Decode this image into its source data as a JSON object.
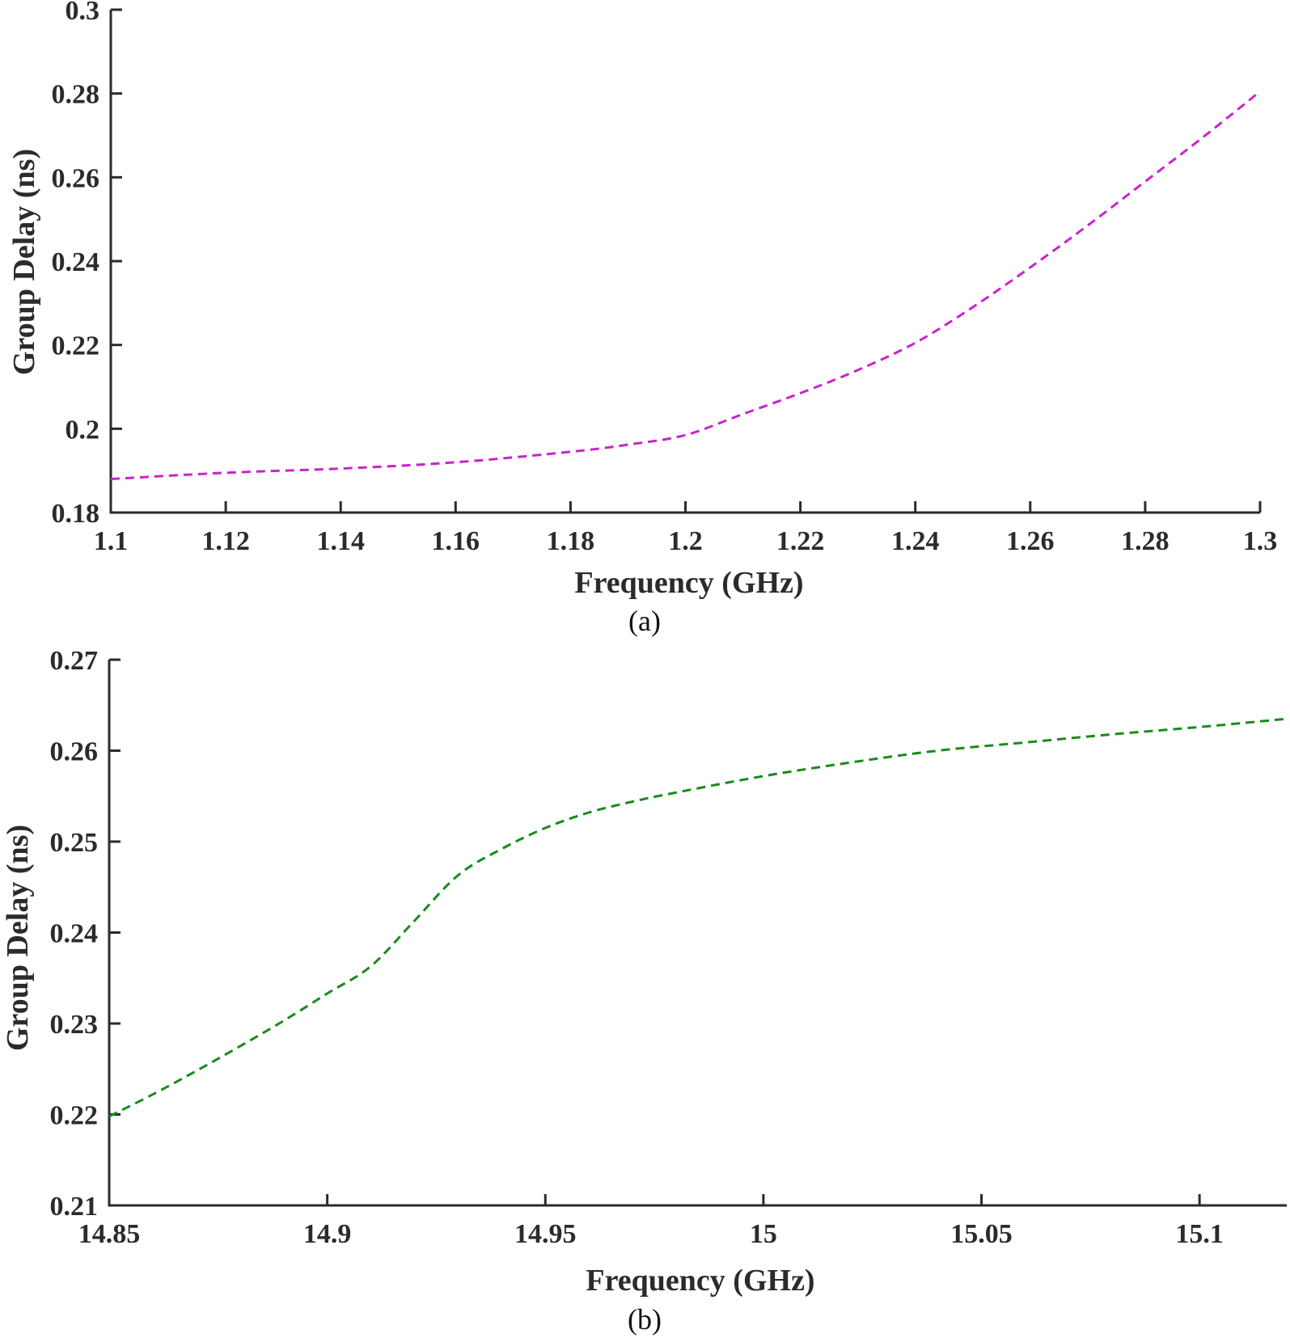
{
  "chart_data": [
    {
      "type": "line",
      "caption": "(a)",
      "xlabel": "Frequency (GHz)",
      "ylabel": "Group Delay (ns)",
      "xlim": [
        1.1,
        1.3
      ],
      "ylim": [
        0.18,
        0.3
      ],
      "xticks": [
        1.1,
        1.12,
        1.14,
        1.16,
        1.18,
        1.2,
        1.22,
        1.24,
        1.26,
        1.28,
        1.3
      ],
      "xtick_labels": [
        "1.1",
        "1.12",
        "1.14",
        "1.16",
        "1.18",
        "1.2",
        "1.22",
        "1.24",
        "1.26",
        "1.28",
        "1.3"
      ],
      "yticks": [
        0.18,
        0.2,
        0.22,
        0.24,
        0.26,
        0.28,
        0.3
      ],
      "ytick_labels": [
        "0.18",
        "0.2",
        "0.22",
        "0.24",
        "0.26",
        "0.28",
        "0.3"
      ],
      "grid": false,
      "series": [
        {
          "color": "#cc22cc",
          "style": "dashed",
          "x": [
            1.1,
            1.12,
            1.14,
            1.16,
            1.18,
            1.19,
            1.2,
            1.21,
            1.22,
            1.23,
            1.24,
            1.25,
            1.26,
            1.27,
            1.28,
            1.29,
            1.3
          ],
          "y": [
            0.188,
            0.1895,
            0.1905,
            0.192,
            0.1945,
            0.1962,
            0.1985,
            0.2035,
            0.2085,
            0.214,
            0.2205,
            0.229,
            0.2385,
            0.2485,
            0.259,
            0.2695,
            0.2805
          ]
        }
      ]
    },
    {
      "type": "line",
      "caption": "(b)",
      "xlabel": "Frequency (GHz)",
      "ylabel": "Group Delay (ns)",
      "xlim": [
        14.85,
        15.12
      ],
      "ylim": [
        0.21,
        0.27
      ],
      "xticks": [
        14.85,
        14.9,
        14.95,
        15.0,
        15.05,
        15.1
      ],
      "xtick_labels": [
        "14.85",
        "14.9",
        "14.95",
        "15",
        "15.05",
        "15.1"
      ],
      "yticks": [
        0.21,
        0.22,
        0.23,
        0.24,
        0.25,
        0.26,
        0.27
      ],
      "ytick_labels": [
        "0.21",
        "0.22",
        "0.23",
        "0.24",
        "0.25",
        "0.26",
        "0.27"
      ],
      "grid": false,
      "series": [
        {
          "color": "#1a8a1a",
          "style": "dashed",
          "x": [
            14.85,
            14.86,
            14.87,
            14.88,
            14.89,
            14.9,
            14.91,
            14.92,
            14.93,
            14.94,
            14.95,
            14.96,
            14.97,
            14.98,
            15.0,
            15.02,
            15.04,
            15.06,
            15.08,
            15.1,
            15.12
          ],
          "y": [
            0.2198,
            0.2222,
            0.2248,
            0.2275,
            0.2303,
            0.2333,
            0.2363,
            0.2413,
            0.2463,
            0.2492,
            0.2515,
            0.2532,
            0.2544,
            0.2554,
            0.2572,
            0.2587,
            0.26,
            0.2609,
            0.2618,
            0.2626,
            0.2635
          ]
        }
      ]
    }
  ]
}
